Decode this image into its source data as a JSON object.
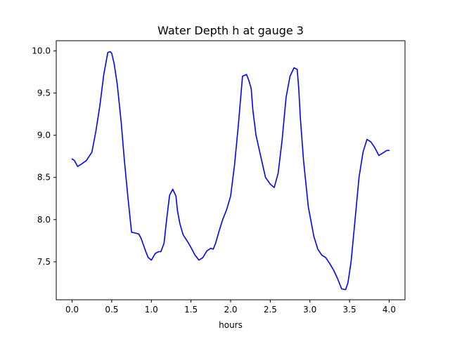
{
  "chart_data": {
    "type": "line",
    "title": "Water Depth h at gauge 3",
    "xlabel": "hours",
    "ylabel": "",
    "xlim": [
      -0.2,
      4.2
    ],
    "ylim": [
      7.05,
      10.12
    ],
    "xticks": [
      0.0,
      0.5,
      1.0,
      1.5,
      2.0,
      2.5,
      3.0,
      3.5,
      4.0
    ],
    "xtick_labels": [
      "0.0",
      "0.5",
      "1.0",
      "1.5",
      "2.0",
      "2.5",
      "3.0",
      "3.5",
      "4.0"
    ],
    "yticks": [
      7.5,
      8.0,
      8.5,
      9.0,
      9.5,
      10.0
    ],
    "ytick_labels": [
      "7.5",
      "8.0",
      "8.5",
      "9.0",
      "9.5",
      "10.0"
    ],
    "grid": false,
    "legend": "none",
    "series": [
      {
        "color": "#0000ff",
        "x": [
          0.0,
          0.03,
          0.07,
          0.12,
          0.18,
          0.25,
          0.3,
          0.35,
          0.4,
          0.45,
          0.48,
          0.5,
          0.53,
          0.57,
          0.62,
          0.66,
          0.7,
          0.75,
          0.8,
          0.84,
          0.87,
          0.9,
          0.93,
          0.96,
          1.0,
          1.05,
          1.09,
          1.12,
          1.16,
          1.19,
          1.23,
          1.27,
          1.31,
          1.33,
          1.36,
          1.4,
          1.45,
          1.5,
          1.55,
          1.6,
          1.65,
          1.7,
          1.75,
          1.78,
          1.81,
          1.85,
          1.9,
          1.95,
          2.0,
          2.05,
          2.1,
          2.15,
          2.2,
          2.23,
          2.26,
          2.28,
          2.32,
          2.38,
          2.44,
          2.5,
          2.55,
          2.6,
          2.65,
          2.7,
          2.75,
          2.8,
          2.84,
          2.86,
          2.88,
          2.92,
          2.98,
          3.05,
          3.1,
          3.15,
          3.2,
          3.25,
          3.3,
          3.35,
          3.4,
          3.45,
          3.48,
          3.52,
          3.57,
          3.62,
          3.67,
          3.72,
          3.77,
          3.82,
          3.87,
          3.92,
          3.97,
          4.0
        ],
        "y": [
          8.72,
          8.7,
          8.63,
          8.66,
          8.7,
          8.8,
          9.05,
          9.35,
          9.72,
          9.98,
          9.99,
          9.97,
          9.85,
          9.6,
          9.15,
          8.7,
          8.3,
          7.85,
          7.84,
          7.83,
          7.78,
          7.7,
          7.62,
          7.55,
          7.52,
          7.6,
          7.62,
          7.62,
          7.72,
          7.98,
          8.29,
          8.36,
          8.28,
          8.1,
          7.95,
          7.82,
          7.75,
          7.67,
          7.58,
          7.52,
          7.55,
          7.63,
          7.66,
          7.65,
          7.72,
          7.85,
          8.0,
          8.12,
          8.28,
          8.65,
          9.15,
          9.7,
          9.72,
          9.65,
          9.55,
          9.3,
          9.0,
          8.75,
          8.5,
          8.42,
          8.38,
          8.55,
          8.95,
          9.45,
          9.7,
          9.8,
          9.78,
          9.55,
          9.2,
          8.7,
          8.15,
          7.8,
          7.65,
          7.58,
          7.55,
          7.48,
          7.4,
          7.3,
          7.18,
          7.17,
          7.25,
          7.5,
          8.0,
          8.5,
          8.8,
          8.95,
          8.92,
          8.85,
          8.76,
          8.79,
          8.82,
          8.82
        ]
      }
    ]
  }
}
